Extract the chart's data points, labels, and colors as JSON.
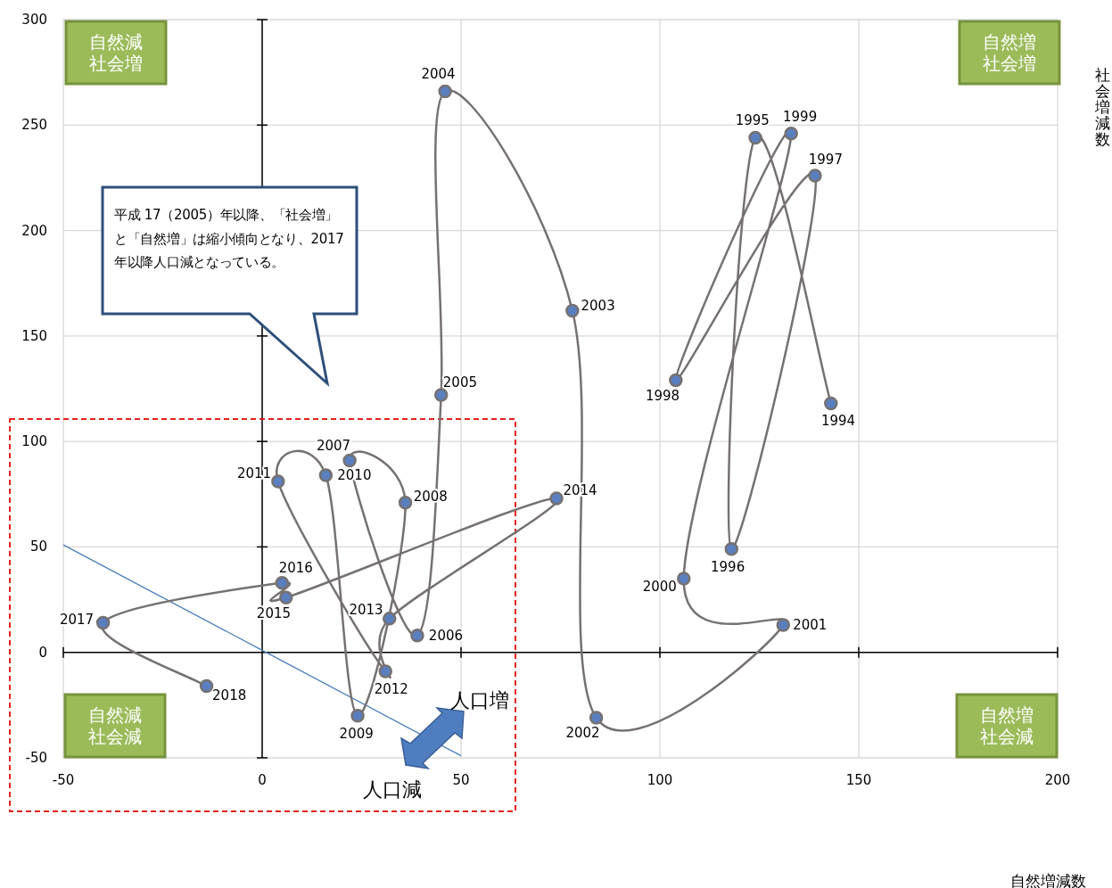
{
  "chart_data": {
    "type": "line",
    "ylabel": "社会増減数",
    "xlim": [
      -50,
      200
    ],
    "ylim": [
      -50,
      300
    ],
    "xticks": [
      -50,
      0,
      50,
      100,
      150,
      200
    ],
    "yticks": [
      -50,
      0,
      50,
      100,
      150,
      200,
      250,
      300
    ],
    "grid": true,
    "marker": "circle",
    "series": [
      {
        "type": "line",
        "color": "#767171",
        "x": [
          143,
          124,
          118,
          139,
          104,
          133,
          106,
          131,
          84,
          78,
          46,
          45,
          39,
          22,
          36,
          24,
          16,
          4,
          31,
          32,
          74,
          6,
          5,
          -40,
          -14
        ],
        "values": [
          118,
          244,
          49,
          226,
          129,
          246,
          35,
          13,
          -31,
          162,
          266,
          122,
          8,
          91,
          71,
          -30,
          84,
          81,
          -9,
          16,
          73,
          26,
          33,
          14,
          -16
        ]
      },
      {
        "type": "line",
        "color": "#4a7ebb",
        "marker": "none",
        "x": [
          -50,
          50
        ],
        "values": [
          51,
          -49
        ]
      }
    ],
    "annotations": [
      "自然減社会増",
      "自然増社会増",
      "自然減社会減",
      "自然増社会減",
      "平成 17（2005）年以降、「社会増」と「自然増」は縮小傾向となり、2017 年以降人口減となっている。",
      "人口増",
      "人口減",
      "自然増減数",
      {
        "text": "1994",
        "x": 143,
        "y": 118
      },
      {
        "text": "1995",
        "x": 124,
        "y": 244
      },
      {
        "text": "1996",
        "x": 118,
        "y": 49
      },
      {
        "text": "1997",
        "x": 139,
        "y": 226
      },
      {
        "text": "1998",
        "x": 104,
        "y": 129
      },
      {
        "text": "1999",
        "x": 133,
        "y": 246
      },
      {
        "text": "2000",
        "x": 106,
        "y": 35
      },
      {
        "text": "2001",
        "x": 131,
        "y": 13
      },
      {
        "text": "2002",
        "x": 84,
        "y": -31
      },
      {
        "text": "2003",
        "x": 78,
        "y": 162
      },
      {
        "text": "2004",
        "x": 46,
        "y": 266
      },
      {
        "text": "2005",
        "x": 45,
        "y": 122
      },
      {
        "text": "2006",
        "x": 39,
        "y": 8
      },
      {
        "text": "2007",
        "x": 22,
        "y": 91
      },
      {
        "text": "2008",
        "x": 36,
        "y": 71
      },
      {
        "text": "2009",
        "x": 24,
        "y": -30
      },
      {
        "text": "2010",
        "x": 16,
        "y": 84
      },
      {
        "text": "2011",
        "x": 4,
        "y": 81
      },
      {
        "text": "2012",
        "x": 31,
        "y": -9
      },
      {
        "text": "2013",
        "x": 32,
        "y": 16
      },
      {
        "text": "2014",
        "x": 74,
        "y": 73
      },
      {
        "text": "2015",
        "x": 6,
        "y": 26
      },
      {
        "text": "2016",
        "x": 5,
        "y": 33
      },
      {
        "text": "2017",
        "x": -40,
        "y": 14
      },
      {
        "text": "2018",
        "x": -14,
        "y": -16
      }
    ]
  }
}
